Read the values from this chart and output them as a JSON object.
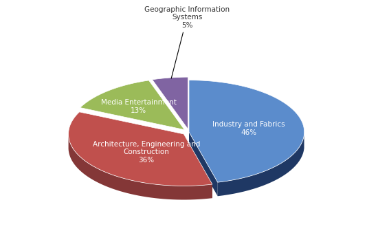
{
  "slices": [
    {
      "label": "Industry and Fabrics\n46%",
      "value": 46,
      "color": "#5B8CCC",
      "dark_color": "#1F3864",
      "explode": 0.0
    },
    {
      "label": "Architecture, Engineering and\nConstruction\n36%",
      "value": 36,
      "color": "#C0504D",
      "dark_color": "#843737",
      "explode": 0.06
    },
    {
      "label": "Media Entertainment\n13%",
      "value": 13,
      "color": "#9BBB59",
      "dark_color": "#4E6626",
      "explode": 0.06
    },
    {
      "label": "Geographic Information\nSystems\n5%",
      "value": 5,
      "color": "#8064A2",
      "dark_color": "#3D1F6E",
      "explode": 0.06
    }
  ],
  "background_color": "#FFFFFF",
  "startangle": 90,
  "label_fontsize": 7.5,
  "depth": 0.12,
  "figsize": [
    5.5,
    3.36
  ],
  "dpi": 100
}
